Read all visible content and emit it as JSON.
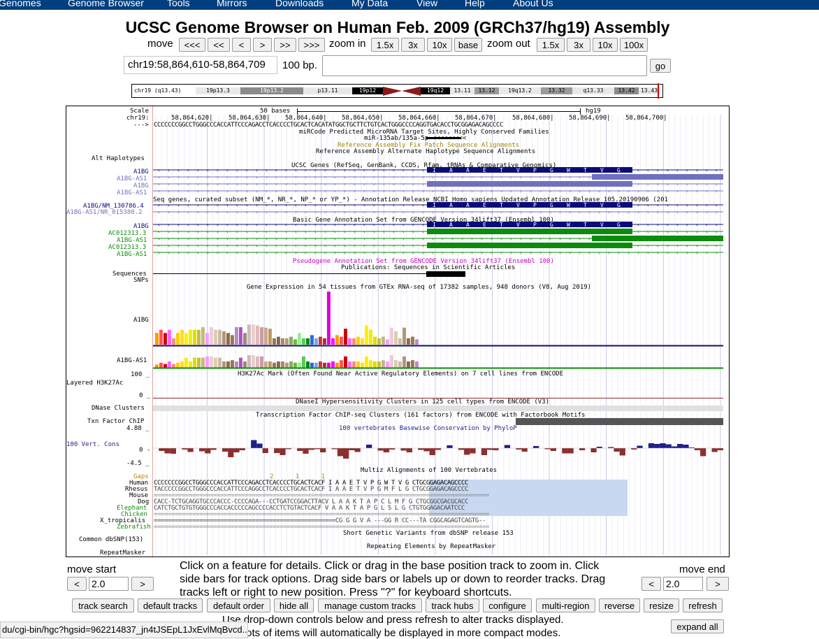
{
  "nav": [
    "Genomes",
    "Genome Browser",
    "Tools",
    "Mirrors",
    "Downloads",
    "My Data",
    "View",
    "Help",
    "About Us"
  ],
  "title": "UCSC Genome Browser on Human Feb. 2009 (GRCh37/hg19) Assembly",
  "move_label": "move",
  "move_buttons": [
    "<<<",
    "<<",
    "<",
    ">",
    ">>",
    ">>>"
  ],
  "zoom_in_label": "zoom in",
  "zoom_in_buttons": [
    "1.5x",
    "3x",
    "10x",
    "base"
  ],
  "zoom_out_label": "zoom out",
  "zoom_out_buttons": [
    "1.5x",
    "3x",
    "10x",
    "100x"
  ],
  "position": "chr19:58,864,610-58,864,709",
  "size": "100 bp.",
  "search_placeholder": "",
  "go_label": "go",
  "ideogram": {
    "chrom": "chr19 (q13.43)",
    "bands": [
      "19p13.3",
      "19p13.2",
      "p13.11",
      "19p12",
      "19q12",
      "13.11",
      "13.12",
      "19q13.2",
      "13.32",
      "q13.33",
      "13.42",
      "13.43"
    ]
  },
  "tracks": {
    "scale_label": "Scale",
    "chrom_label": "chr19:",
    "strand_label": "--->",
    "scale_text": "50 bases",
    "assembly": "hg19",
    "coords": [
      "58,864,620|",
      "58,864,630|",
      "58,864,640|",
      "58,864,650|",
      "58,864,660|",
      "58,864,670|",
      "58,864,680|",
      "58,864,690|",
      "58,864,700|"
    ],
    "sequence": "CCCCCCCGGCCTGGGCCCACCATTCCCAGACCTCACCCCTGCACTCACATATGGCTGCTTCTGTCACTGGGCCCCAGGTGACACCTGCGGAGACAGCCCC",
    "mircode_title": "miRCode Predicted MicroRNA Target Sites, Highly Conserved Families",
    "mircode_item": "miR-135ab/135a-5p <<<<<<<<<",
    "fix_patch": "Reference Assembly Fix Patch Sequence Alignments",
    "alt_hap_title": "Reference Assembly Alternate Haplotype Sequence Alignments",
    "alt_hap_label": "Alt Haplotypes",
    "ucsc_genes_title": "UCSC Genes (RefSeq, GenBank, CCDS, Rfam, tRNAs & Comparative Genomics)",
    "ucsc_gene_labels": [
      "A1BG",
      "A1BG-AS1",
      "A1BG",
      "A1BG-AS1"
    ],
    "aa": [
      "I",
      "A",
      "A",
      "E",
      "T",
      "V",
      "P",
      "G",
      "W",
      "T",
      "V",
      "G"
    ],
    "refseq_title": "Seq genes, curated subset (NM_*, NR_*, NP_* or YP_*) - Annotation Release NCBI Homo sapiens Updated Annotation Release 105.20190906 (201",
    "refseq_labels": [
      "A1BG/NM_130786.4",
      "A1BG-AS1/NR_015380.2"
    ],
    "gencode_title": "Basic Gene Annotation Set from GENCODE Version 34lift37 (Ensembl 100)",
    "gencode_labels": [
      "A1BG",
      "AC012313.3",
      "A1BG-AS1",
      "AC012313.3",
      "A1BG-AS1"
    ],
    "pseudo_title": "Pseudogene Annotation Set from GENCODE Version 34lift37 (Ensembl 100)",
    "pubs_title": "Publications: Sequences in Scientific Articles",
    "sequences_label": "Sequences",
    "snps_label": "SNPs",
    "gtex_title": "Gene Expression in 54 tissues from GTEx RNA-seq of 17382 samples, 948 donors (V8, Aug 2019)",
    "gtex_labels": [
      "A1BG",
      "A1BG-AS1"
    ],
    "h3k27_title": "H3K27Ac Mark (Often Found Near Active Regulatory Elements) on 7 cell lines from ENCODE",
    "h3k27_label": "Layered H3K27Ac",
    "h3k27_max": "100 _",
    "h3k27_min": "0 _",
    "dnase_title": "DNaseI Hypersensitivity Clusters in 125 cell types from ENCODE (V3)",
    "dnase_label": "DNase Clusters",
    "tfbs_title": "Transcription Factor ChIP-seq Clusters (161 factors) from ENCODE with Factorbook Motifs",
    "tfbs_label": "Txn Factor ChIP",
    "cons_title": "100 vertebrates Basewise Conservation by PhyloP",
    "cons_label": "100 Vert. Cons",
    "cons_max": "4.88 _",
    "cons_zero": "0 -",
    "cons_min": "-4.5 _",
    "multiz_title": "Multiz Alignments of 100 Vertebrates",
    "species": [
      "Gaps",
      "Human",
      "Rhesus",
      "Mouse",
      "Dog",
      "Elephant",
      "Chicken",
      "X_tropicalis",
      "Zebrafish"
    ],
    "gaps_row": "2 1 1",
    "align_rows": [
      "CCCCCCCGGCCTGGGCCCACCATTCCCAGACCTCACCCCTGCACTCACF I  A  A  E  T  V  P  G  W  T  V  G  CTGCGGAGACAGCCCC",
      "TACCCCCGGCCTGGGCCCACCATTCCCAGGCCTCACCCCTGCACTCACF I  A  A  E  T  V  P  G  M  F  L  G  CTGCGGAGACAGCCCC",
      "================================================================================================",
      "CACC-TCTGCAGGTGCCCACCC-CCCCAGA---CCTGATCCGGACTTACV L  A  A  K  T  A  P  C  L  M  F  G  CTGCGGCGACGCACC",
      "CATCTGCTGTGTGGGCCCACCACCCCCAGCCCCACCTCTGTACTCACF V  A  A  K  T  A  P  G  L  S  L  G  CTGTGGAGACAATCCC",
      "================================================================================================",
      "====================================================CG G  G  V  A ---GG R  CC---TA CGGCAGAGTCAGTG--",
      "================================================================================================"
    ],
    "snp153_title": "Short Genetic Variants from dbSNP release 153",
    "snp153_label": "Common dbSNP(153)",
    "rmsk_title": "Repeating Elements by RepeatMasker",
    "rmsk_label": "RepeatMasker"
  },
  "move_start_label": "move start",
  "move_end_label": "move end",
  "move_start_value": "2.0",
  "move_end_value": "2.0",
  "help_text": "Click on a feature for details. Click or drag in the base position track to zoom in. Click side bars for track options. Drag side bars or labels up or down to reorder tracks. Drag tracks left or right to new position. Press \"?\" for keyboard shortcuts.",
  "bottom_buttons": [
    "track search",
    "default tracks",
    "default order",
    "hide all",
    "manage custom tracks",
    "track hubs",
    "configure",
    "multi-region",
    "reverse",
    "resize",
    "refresh"
  ],
  "dropdown_note": "Use drop-down controls below and press refresh to alter tracks displayed.",
  "dropdown_note2": "with lots of items will automatically be displayed in more compact modes.",
  "expand_all_label": "expand all",
  "status_url": "du/cgi-bin/hgc?hgsid=962214837_jn4tJSEpL1JxEvlMqBvcd...",
  "colors": {
    "nav_bg": "#003f7f",
    "gene_blue": "#0c0c78",
    "gencode_green": "#0c8c0c",
    "cons_pos": "#1f1f8c",
    "cons_neg": "#8c2f2f",
    "pseudo_magenta": "#c800c8"
  },
  "gtex_a1bg": [
    0.22,
    0.28,
    0.22,
    0.28,
    0.12,
    0.22,
    0.28,
    0.22,
    0.28,
    0.28,
    0.28,
    0.33,
    0.22,
    0.33,
    0.28,
    0.28,
    0.25,
    0.22,
    0.18,
    0.33,
    0.33,
    0.22,
    0.38,
    0.38,
    0.36,
    0.33,
    0.32,
    0.3,
    0.12,
    0.15,
    0.12,
    0.12,
    0.15,
    0.1,
    0.22,
    0.12,
    0.12,
    0.18,
    0.12,
    0.15,
    0.12,
    1.0,
    0.12,
    0.18,
    0.15,
    0.3,
    0.12,
    0.12,
    0.15,
    0.12,
    0.36,
    0.28,
    0.15,
    0.12,
    0.15,
    0.1,
    0.32,
    0.25,
    0.12,
    0.32,
    0.12,
    0.15,
    0.1
  ],
  "gtex_a1bg_as1": [
    0.25,
    0.4,
    0.3,
    0.5,
    0.3,
    0.4,
    0.5,
    0.8,
    0.5,
    0.8,
    0.8,
    0.8,
    0.9,
    0.9,
    0.8,
    0.8,
    0.5,
    0.5,
    0.6,
    0.5,
    0.8,
    0.5,
    1.0,
    1.0,
    0.9,
    0.9,
    0.5,
    0.5,
    0.4,
    0.5,
    0.5,
    0.4,
    0.5,
    0.4,
    0.4,
    0.9,
    0.5,
    0.4,
    0.4,
    0.5,
    0.4,
    0.4,
    0.5,
    0.4,
    0.6,
    0.9,
    0.5,
    0.5,
    0.5,
    0.4,
    0.9,
    0.6,
    0.5,
    0.5,
    0.6,
    0.5,
    1.0,
    0.6,
    0.5,
    0.9,
    0.5,
    0.6,
    0.5
  ],
  "cons_values": [
    0.0,
    -0.8,
    -1.5,
    -1.6,
    0.0,
    -0.4,
    -1.1,
    0.0,
    -0.9,
    -1.5,
    -0.5,
    0.0,
    -1.0,
    -2.6,
    -1.2,
    -0.6,
    0.0,
    2.3,
    1.3,
    -1.4,
    0.0,
    -1.4,
    -2.0,
    -0.3,
    0.0,
    -0.8,
    -1.6,
    -0.5,
    -0.3,
    -1.2,
    0.0,
    -0.3,
    -2.3,
    -3.0,
    -0.6,
    -1.1,
    0.0,
    1.0,
    0.0,
    -0.7,
    -1.2,
    -0.4,
    0.0,
    -0.7,
    -1.2,
    0.0,
    -0.5,
    -0.9,
    -2.0,
    -0.5,
    0.0,
    0.8,
    0.0,
    -0.5,
    -1.9,
    -1.5,
    0.0,
    -2.0,
    -0.5,
    -0.6,
    0.0,
    0.9,
    0.0,
    -0.4,
    -1.0,
    0.0,
    0.6,
    0.0,
    -0.3,
    -0.8,
    0.0,
    -1.5,
    -1.5,
    0.0,
    -0.6,
    0.0,
    -1.2,
    0.4,
    0.0,
    0.3,
    -1.0,
    -2.1,
    0.0,
    -0.4,
    0.7,
    0.0,
    1.4,
    1.2,
    1.4,
    1.1,
    0.5,
    1.2,
    1.0,
    0.2,
    -0.6,
    -2.3,
    0.0,
    -1.1,
    -0.6
  ]
}
